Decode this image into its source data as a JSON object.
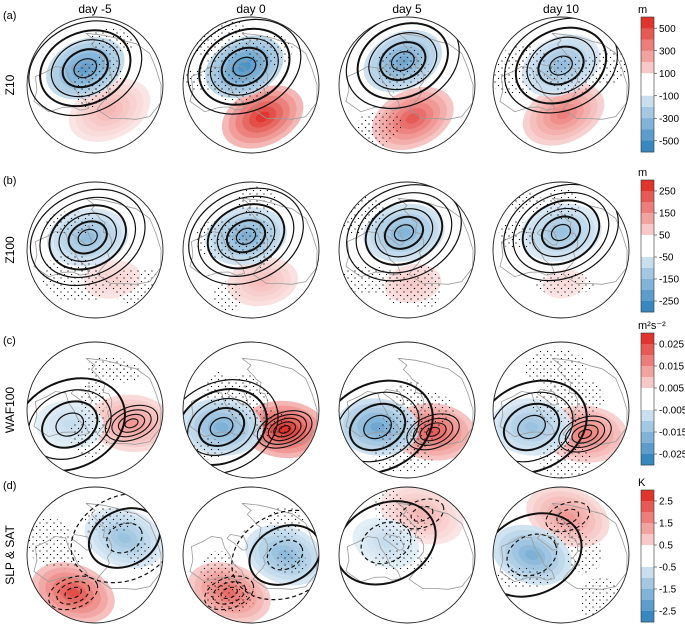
{
  "chart_data": {
    "type": "heatmap",
    "columns": [
      "day -5",
      "day 0",
      "day 5",
      "day 10"
    ],
    "rows": [
      {
        "panel": "(a)",
        "ylabel": "Z10",
        "colorbar": {
          "unit": "m",
          "ticks": [
            "500",
            "300",
            "100",
            "-100",
            "-300",
            "-500"
          ],
          "range": [
            -600,
            600
          ]
        },
        "maps": [
          {
            "high_center_lonlat": [
              150,
              60
            ],
            "high_value": 200,
            "low_center_lonlat": [
              -30,
              70
            ],
            "low_value": -450,
            "contour_levels": 5
          },
          {
            "high_center_lonlat": [
              160,
              55
            ],
            "high_value": 550,
            "low_center_lonlat": [
              -20,
              70
            ],
            "low_value": -500,
            "contour_levels": 5
          },
          {
            "high_center_lonlat": [
              170,
              55
            ],
            "high_value": 450,
            "low_center_lonlat": [
              -10,
              65
            ],
            "low_value": -400,
            "contour_levels": 5
          },
          {
            "high_center_lonlat": [
              175,
              60
            ],
            "high_value": 350,
            "low_center_lonlat": [
              0,
              70
            ],
            "low_value": -300,
            "contour_levels": 5
          }
        ]
      },
      {
        "panel": "(b)",
        "ylabel": "Z100",
        "colorbar": {
          "unit": "m",
          "ticks": [
            "250",
            "150",
            "50",
            "-50",
            "-150",
            "-250"
          ],
          "range": [
            -300,
            300
          ]
        },
        "maps": [
          {
            "high_center_lonlat": [
              150,
              55
            ],
            "high_value": 60,
            "low_center_lonlat": [
              -30,
              75
            ],
            "low_value": -150,
            "contour_levels": 6
          },
          {
            "high_center_lonlat": [
              160,
              55
            ],
            "high_value": 90,
            "low_center_lonlat": [
              -20,
              75
            ],
            "low_value": -180,
            "contour_levels": 6
          },
          {
            "high_center_lonlat": [
              170,
              55
            ],
            "high_value": 70,
            "low_center_lonlat": [
              -10,
              72
            ],
            "low_value": -170,
            "contour_levels": 6
          },
          {
            "high_center_lonlat": [
              175,
              55
            ],
            "high_value": 50,
            "low_center_lonlat": [
              0,
              72
            ],
            "low_value": -140,
            "contour_levels": 6
          }
        ]
      },
      {
        "panel": "(c)",
        "ylabel": "WAF100",
        "colorbar": {
          "unit": "m²s⁻²",
          "ticks": [
            "0.025",
            "0.015",
            "0.005",
            "-0.005",
            "-0.015",
            "-0.025"
          ],
          "range": [
            -0.03,
            0.03
          ]
        },
        "maps": [
          {
            "high_center_lonlat": [
              110,
              50
            ],
            "high_value": 0.014,
            "low_center_lonlat": [
              -120,
              60
            ],
            "low_value": -0.008,
            "contour_levels": 4
          },
          {
            "high_center_lonlat": [
              120,
              50
            ],
            "high_value": 0.028,
            "low_center_lonlat": [
              -120,
              55
            ],
            "low_value": -0.018,
            "contour_levels": 5
          },
          {
            "high_center_lonlat": [
              130,
              55
            ],
            "high_value": 0.022,
            "low_center_lonlat": [
              -120,
              55
            ],
            "low_value": -0.02,
            "contour_levels": 4
          },
          {
            "high_center_lonlat": [
              135,
              55
            ],
            "high_value": 0.018,
            "low_center_lonlat": [
              -120,
              55
            ],
            "low_value": -0.014,
            "contour_levels": 4
          }
        ]
      },
      {
        "panel": "(d)",
        "ylabel": "SLP & SAT",
        "colorbar": {
          "unit": "K",
          "ticks": [
            "2.5",
            "1.5",
            "0.5",
            "-0.5",
            "-1.5",
            "-2.5"
          ],
          "range": [
            -3,
            3
          ]
        },
        "maps": [
          {
            "high_center_lonlat": [
              -150,
              45
            ],
            "high_value": 2.4,
            "low_center_lonlat": [
              60,
              55
            ],
            "low_value": -1.4,
            "contour_levels": 3
          },
          {
            "high_center_lonlat": [
              -150,
              45
            ],
            "high_value": 2.0,
            "low_center_lonlat": [
              90,
              55
            ],
            "low_value": -1.6,
            "contour_levels": 3
          },
          {
            "high_center_lonlat": [
              20,
              45
            ],
            "high_value": 1.0,
            "low_center_lonlat": [
              -60,
              65
            ],
            "low_value": -0.8,
            "contour_levels": 2
          },
          {
            "high_center_lonlat": [
              10,
              50
            ],
            "high_value": 1.4,
            "low_center_lonlat": [
              -90,
              60
            ],
            "low_value": -1.8,
            "contour_levels": 2
          }
        ]
      }
    ],
    "colormap": {
      "positive": "#de2d26",
      "negative": "#3182bd",
      "neutral": "#ffffff"
    },
    "stippling": true,
    "projection": "north-polar-stereographic"
  }
}
